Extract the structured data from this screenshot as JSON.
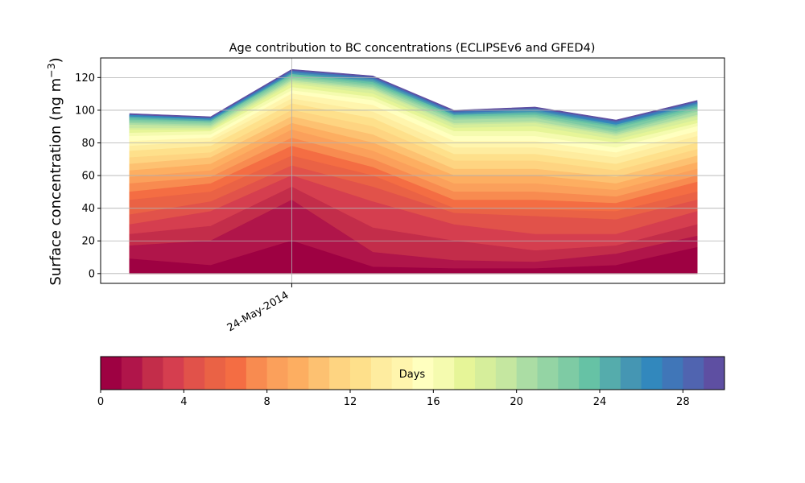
{
  "chart_data": {
    "type": "area",
    "stacked": true,
    "title": "Age contribution to BC concentrations (ECLIPSEv6 and GFED4)",
    "ylabel_main": "Surface concentration (ng m",
    "ylabel_sup": "−3",
    "ylabel_close": ")",
    "ylim": [
      -6,
      132
    ],
    "yticks": [
      0,
      20,
      40,
      60,
      80,
      100,
      120
    ],
    "x_tick_label": "24-May-2014",
    "grid": true,
    "x_points": 8,
    "x_tick_index": 2,
    "totals": [
      98,
      96,
      125,
      121,
      100,
      102,
      94,
      106
    ],
    "boundaries": [
      [
        9,
        5,
        20,
        4,
        3,
        3,
        5,
        16
      ],
      [
        17,
        20,
        45,
        13,
        8,
        7,
        12,
        23
      ],
      [
        24,
        29,
        53,
        28,
        20,
        14,
        17,
        30
      ],
      [
        30,
        38,
        60,
        44,
        30,
        24,
        24,
        38
      ],
      [
        36,
        44,
        66,
        53,
        37,
        35,
        33,
        45
      ],
      [
        45,
        50,
        72,
        60,
        40,
        39,
        38,
        50
      ],
      [
        50,
        55,
        78,
        65,
        45,
        45,
        43,
        56
      ],
      [
        55,
        59,
        83,
        70,
        50,
        50,
        47,
        60
      ],
      [
        59,
        63,
        88,
        75,
        55,
        55,
        51,
        64
      ],
      [
        63,
        67,
        92,
        80,
        60,
        60,
        55,
        68
      ],
      [
        67,
        71,
        96,
        85,
        64,
        64,
        59,
        72
      ],
      [
        71,
        74,
        100,
        90,
        69,
        69,
        63,
        76
      ],
      [
        75,
        78,
        104,
        95,
        73,
        73,
        67,
        80
      ],
      [
        78,
        81,
        107,
        99,
        77,
        77,
        71,
        84
      ],
      [
        81,
        83,
        110,
        103,
        81,
        81,
        74,
        87
      ],
      [
        84,
        85,
        112,
        106,
        84,
        84,
        77,
        90
      ],
      [
        86,
        87,
        114,
        108,
        87,
        87,
        80,
        92
      ],
      [
        88,
        88,
        116,
        110,
        89,
        90,
        82,
        94
      ],
      [
        89,
        89,
        117,
        112,
        91,
        92,
        84,
        96
      ],
      [
        91,
        90,
        118,
        113,
        92,
        93,
        85,
        97
      ],
      [
        92,
        91,
        119,
        114,
        94,
        95,
        86,
        99
      ],
      [
        93,
        92,
        120,
        115,
        95,
        96,
        87,
        100
      ],
      [
        94,
        93,
        121,
        116,
        96,
        97,
        89,
        101
      ],
      [
        95,
        93,
        122,
        117,
        97,
        98,
        90,
        102
      ],
      [
        96,
        94,
        122,
        118,
        97,
        99,
        91,
        103
      ],
      [
        96,
        94,
        123,
        119,
        98,
        100,
        91,
        104
      ],
      [
        97,
        95,
        123,
        119,
        98,
        100,
        92,
        104
      ],
      [
        97,
        95,
        124,
        120,
        99,
        101,
        93,
        105
      ],
      [
        97,
        95,
        124,
        120,
        99,
        101,
        93,
        105
      ]
    ],
    "colorbar": {
      "label": "Days",
      "min": 0,
      "max": 30,
      "ticks": [
        0,
        4,
        8,
        12,
        16,
        20,
        24,
        28
      ],
      "colors": [
        "#9e0142",
        "#b0154a",
        "#c32d4a",
        "#d53e4f",
        "#e1524a",
        "#ea6245",
        "#f46d43",
        "#f88b50",
        "#fba05b",
        "#fdae61",
        "#fdc171",
        "#fed481",
        "#fee08b",
        "#feec9f",
        "#fff5ad",
        "#ffffbf",
        "#f5fbaf",
        "#e6f598",
        "#d6ee9b",
        "#c5e7a0",
        "#abdda4",
        "#94d4a4",
        "#7ecba4",
        "#66c2a5",
        "#55acac",
        "#4596b3",
        "#3288bd",
        "#4076b8",
        "#5064b0",
        "#5e4fa2"
      ]
    }
  }
}
